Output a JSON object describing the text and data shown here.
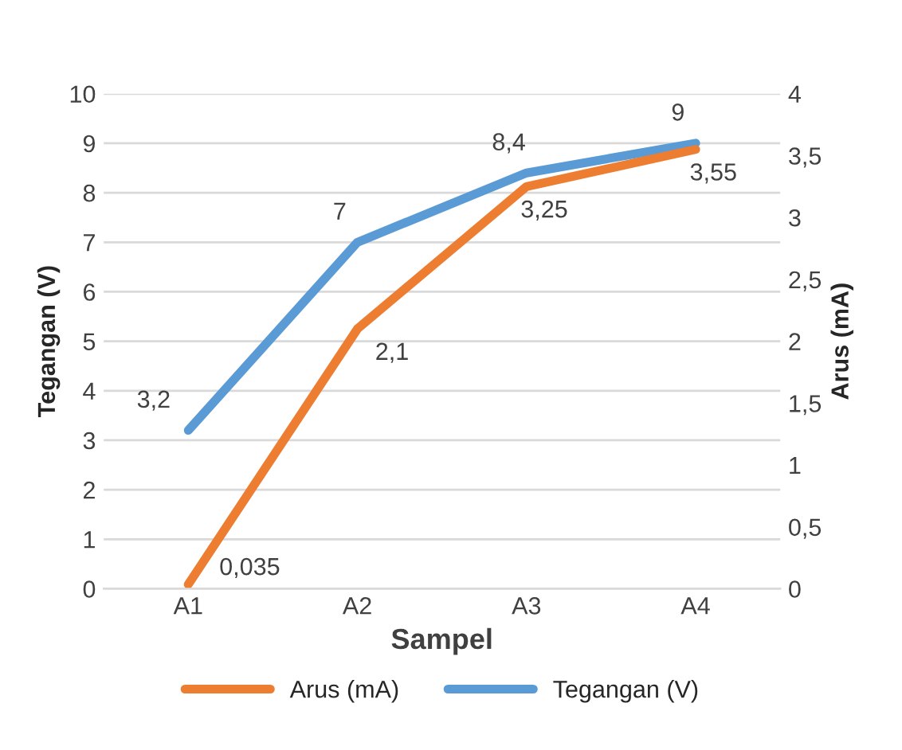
{
  "chart_data": {
    "type": "line",
    "categories": [
      "A1",
      "A2",
      "A3",
      "A4"
    ],
    "xlabel": "Sampel",
    "ylabel": "Tegangan (V)",
    "y2label": "Arus (mA)",
    "ylim": [
      0,
      10
    ],
    "yticks": [
      0,
      1,
      2,
      3,
      4,
      5,
      6,
      7,
      8,
      9,
      10
    ],
    "y2lim": [
      0,
      4
    ],
    "y2ticks": [
      0,
      {
        "value": 0.5,
        "label": "0,5"
      },
      1,
      {
        "value": 1.5,
        "label": "1,5"
      },
      2,
      {
        "value": 2.5,
        "label": "2,5"
      },
      3,
      {
        "value": 3.5,
        "label": "3,5"
      },
      4
    ],
    "grid": "y",
    "legend": "bottom",
    "marker": "none",
    "line_style": "solid",
    "series": [
      {
        "name": "Arus (mA)",
        "color": "#ed7d31",
        "axis": "y2",
        "values": [
          0.035,
          2.1,
          3.25,
          3.55
        ],
        "value_labels": [
          "0,035",
          "2,1",
          "3,25",
          "3,55"
        ]
      },
      {
        "name": "Tegangan (V)",
        "color": "#5b9bd5",
        "values": [
          3.2,
          7,
          8.4,
          9
        ],
        "value_labels": [
          "3,2",
          "7",
          "8,4",
          "9"
        ]
      }
    ]
  }
}
